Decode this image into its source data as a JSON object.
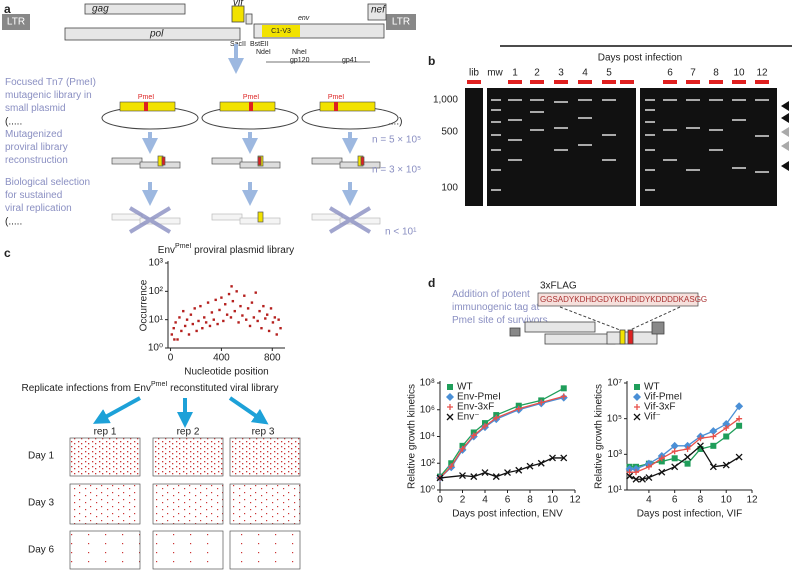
{
  "panel_a": {
    "label": "a",
    "gag": "gag",
    "vif": "vif",
    "nef": "nef",
    "ltr_left": "LTR",
    "ltr_right": "LTR",
    "pol": "pol",
    "env": "env",
    "c1v3": "C1-V3",
    "sacii": "SacII",
    "bsteii": "BstEII",
    "ndei": "NdeI",
    "nhei": "NheI",
    "gp120": "gp120",
    "gp41": "gp41",
    "step1": [
      "Focused Tn7 (PmeI)",
      "mutagenic library in",
      "small plasmid"
    ],
    "step2": [
      "Mutagenized",
      "proviral library",
      "reconstruction"
    ],
    "step3": [
      "Biological selection",
      "for sustained",
      "viral replication"
    ],
    "plasmid_site": "PmeI",
    "ellipsis_open": "(.....",
    "ellipsis_close": "....)",
    "n_library": "n = 5 × 10⁵",
    "n_proviral": "n = 3 × 10⁵",
    "n_selected": "n < 10¹"
  },
  "panel_b": {
    "label": "b",
    "header": "Days post infection",
    "lanes": [
      "lib",
      "mw",
      "1",
      "2",
      "3",
      "4",
      "5",
      "6",
      "7",
      "8",
      "10",
      "12"
    ],
    "size_markers": [
      "1,000",
      "500",
      "100"
    ]
  },
  "panel_c": {
    "label": "c",
    "replicate_title": "Replicate infections from Env",
    "replicate_superscript": "PmeI",
    "replicate_suffix": " reconstituted viral library",
    "reps": [
      "rep 1",
      "rep 2",
      "rep 3"
    ],
    "days": [
      "Day 1",
      "Day 3",
      "Day 6"
    ]
  },
  "panel_d": {
    "label": "d",
    "tag_name": "3xFLAG",
    "tag_sequence": "GGSADYKDHDGDYKDHDIDYKDDDDKASGG",
    "note": [
      "Addition of potent",
      "immunogenic tag at",
      "PmeI site of survivors"
    ]
  },
  "chart_data": [
    {
      "type": "scatter",
      "title": "Env",
      "title_superscript": "PmeI",
      "title_suffix": " proviral plasmid library",
      "x_label": "Nucleotide position",
      "y_label": "Occurrence",
      "color": "#b5201e",
      "log_y": true,
      "x": [
        10,
        25,
        40,
        55,
        70,
        85,
        100,
        115,
        130,
        145,
        160,
        175,
        190,
        205,
        220,
        235,
        250,
        265,
        280,
        295,
        310,
        325,
        340,
        355,
        370,
        385,
        400,
        415,
        430,
        445,
        460,
        475,
        490,
        505,
        520,
        535,
        550,
        565,
        580,
        595,
        610,
        625,
        640,
        655,
        670,
        685,
        700,
        715,
        730,
        745,
        760,
        775,
        790,
        805,
        820,
        835,
        850,
        865,
        30,
        480
      ],
      "values": [
        3,
        5,
        8,
        2,
        12,
        4,
        20,
        6,
        10,
        3,
        15,
        7,
        25,
        4,
        9,
        30,
        5,
        12,
        8,
        40,
        6,
        18,
        10,
        50,
        7,
        22,
        60,
        9,
        35,
        15,
        80,
        12,
        45,
        20,
        100,
        8,
        30,
        14,
        70,
        10,
        25,
        6,
        40,
        12,
        90,
        9,
        20,
        5,
        30,
        11,
        15,
        4,
        25,
        8,
        12,
        3,
        10,
        5,
        2,
        150
      ],
      "xlim": [
        -20,
        900
      ],
      "xticks": [
        0,
        400,
        800
      ],
      "ylim": [
        1,
        1000
      ],
      "yticks": [
        {
          "value": 1,
          "label": "10⁰"
        },
        {
          "value": 10,
          "label": "10¹"
        },
        {
          "value": 100,
          "label": "10²"
        },
        {
          "value": 1000,
          "label": "10³"
        }
      ]
    },
    {
      "type": "line",
      "x_label": "Days post infection, ENV",
      "y_label": "Relative growth kinetics",
      "log_y": true,
      "xlim": [
        0,
        12
      ],
      "xticks": [
        0,
        2,
        4,
        6,
        8,
        10,
        12
      ],
      "ylim": [
        1,
        100000000
      ],
      "yticks": [
        {
          "value": 1,
          "label": "10⁰"
        },
        {
          "value": 100,
          "label": "10²"
        },
        {
          "value": 10000,
          "label": "10⁴"
        },
        {
          "value": 1000000,
          "label": "10⁶"
        },
        {
          "value": 100000000,
          "label": "10⁸"
        }
      ],
      "series": [
        {
          "name": "WT",
          "color": "#1f9e5a",
          "marker": "square",
          "x": [
            0,
            1,
            2,
            3,
            4,
            5,
            7,
            9,
            11
          ],
          "values": [
            10,
            100,
            2000,
            20000,
            100000,
            400000,
            2000000,
            5000000,
            40000000
          ]
        },
        {
          "name": "Env-PmeI",
          "color": "#4a8fd6",
          "marker": "diamond",
          "x": [
            0,
            1,
            2,
            3,
            4,
            5,
            7,
            9,
            11
          ],
          "values": [
            8,
            50,
            1000,
            10000,
            50000,
            200000,
            1000000,
            3000000,
            8000000
          ]
        },
        {
          "name": "Env-3xF",
          "color": "#e8504a",
          "marker": "plus",
          "x": [
            0,
            1,
            2,
            3,
            4,
            5,
            7,
            9,
            11
          ],
          "values": [
            8,
            60,
            1200,
            12000,
            60000,
            250000,
            1200000,
            3500000,
            10000000
          ]
        },
        {
          "name": "Env⁻",
          "color": "#111111",
          "marker": "x",
          "x": [
            0,
            2,
            3,
            4,
            5,
            6,
            7,
            8,
            9,
            10,
            11
          ],
          "values": [
            8,
            12,
            10,
            20,
            10,
            20,
            30,
            60,
            100,
            250,
            250
          ]
        }
      ]
    },
    {
      "type": "line",
      "x_label": "Days post infection, VIF",
      "y_label": "Relative growth kinetics",
      "log_y": true,
      "xlim": [
        2.3,
        12
      ],
      "xticks": [
        4,
        6,
        8,
        10,
        12
      ],
      "ylim": [
        10,
        10000000
      ],
      "yticks": [
        {
          "value": 10,
          "label": "10¹"
        },
        {
          "value": 1000,
          "label": "10³"
        },
        {
          "value": 100000,
          "label": "10⁵"
        },
        {
          "value": 10000000,
          "label": "10⁷"
        }
      ],
      "series": [
        {
          "name": "WT",
          "color": "#1f9e5a",
          "marker": "square",
          "x": [
            2.5,
            3,
            4,
            5,
            6,
            7,
            8,
            9,
            10,
            11
          ],
          "values": [
            200,
            200,
            300,
            400,
            600,
            300,
            2000,
            3000,
            10000,
            40000
          ]
        },
        {
          "name": "Vif-PmeI",
          "color": "#4a8fd6",
          "marker": "diamond",
          "x": [
            2.5,
            3,
            4,
            5,
            6,
            7,
            8,
            9,
            10,
            11
          ],
          "values": [
            150,
            150,
            300,
            800,
            3000,
            3000,
            10000,
            20000,
            50000,
            500000
          ]
        },
        {
          "name": "Vif-3xF",
          "color": "#e8504a",
          "marker": "plus",
          "x": [
            2.5,
            3,
            4,
            5,
            6,
            7,
            8,
            9,
            10,
            11
          ],
          "values": [
            100,
            100,
            200,
            600,
            1500,
            2000,
            8000,
            10000,
            30000,
            100000
          ]
        },
        {
          "name": "Vif⁻",
          "color": "#111111",
          "marker": "x",
          "x": [
            2.5,
            3,
            3.5,
            4,
            5,
            6,
            7,
            8,
            9,
            10,
            11
          ],
          "values": [
            60,
            40,
            40,
            50,
            100,
            200,
            700,
            3000,
            200,
            250,
            700
          ]
        }
      ]
    }
  ]
}
